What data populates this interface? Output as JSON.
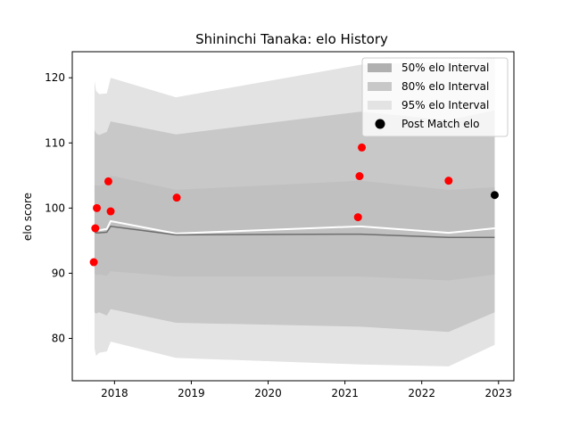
{
  "chart_data": {
    "type": "area",
    "title": "Shininchi Tanaka: elo History",
    "xlabel": "",
    "ylabel": "elo score",
    "xlim": [
      2017.45,
      2023.2
    ],
    "ylim": [
      73.5,
      124
    ],
    "x_ticks": [
      2018,
      2019,
      2020,
      2021,
      2022,
      2023
    ],
    "x_tick_labels": [
      "2018",
      "2019",
      "2020",
      "2021",
      "2022",
      "2023"
    ],
    "y_ticks": [
      80,
      90,
      100,
      110,
      120
    ],
    "y_tick_labels": [
      "80",
      "90",
      "100",
      "110",
      "120"
    ],
    "grid": false,
    "legend_position": "top-right",
    "legend": [
      {
        "label": "50% elo Interval",
        "kind": "patch",
        "color": "#b0b0b0"
      },
      {
        "label": "80% elo Interval",
        "kind": "patch",
        "color": "#c8c8c8"
      },
      {
        "label": "95% elo Interval",
        "kind": "patch",
        "color": "#e3e3e3"
      },
      {
        "label": "Post Match elo",
        "kind": "marker",
        "color": "#000000"
      }
    ],
    "bands": [
      {
        "name": "95% elo Interval",
        "color": "#e3e3e3",
        "x": [
          2017.74,
          2017.76,
          2017.8,
          2017.9,
          2017.95,
          2018.8,
          2021.2,
          2022.35,
          2022.95
        ],
        "upper": [
          119.5,
          118.0,
          117.5,
          117.6,
          120.0,
          117.0,
          122.0,
          122.5,
          123.0
        ],
        "lower": [
          78.5,
          77.3,
          77.8,
          78.0,
          79.5,
          77.0,
          76.0,
          75.7,
          79.0
        ]
      },
      {
        "name": "80% elo Interval",
        "color": "#c8c8c8",
        "x": [
          2017.74,
          2017.76,
          2017.8,
          2017.9,
          2017.95,
          2018.8,
          2021.2,
          2022.35,
          2022.95
        ],
        "upper": [
          112.0,
          111.5,
          111.2,
          111.7,
          113.3,
          111.3,
          114.8,
          113.5,
          115.0
        ],
        "lower": [
          84.0,
          83.8,
          84.0,
          83.5,
          84.5,
          82.4,
          81.8,
          81.0,
          84.0
        ]
      },
      {
        "name": "50% elo Interval",
        "color": "#c0c0c0",
        "x": [
          2017.74,
          2017.76,
          2017.8,
          2017.9,
          2017.95,
          2018.8,
          2021.2,
          2022.35,
          2022.95
        ],
        "upper": [
          103.5,
          103.5,
          103.4,
          103.8,
          105.0,
          102.8,
          104.2,
          102.8,
          103.2
        ],
        "lower": [
          90.0,
          89.7,
          89.8,
          89.6,
          90.3,
          89.5,
          89.5,
          88.9,
          89.8
        ]
      }
    ],
    "lines": [
      {
        "role": "mean",
        "color": "#ffffff",
        "x": [
          2017.74,
          2017.76,
          2017.8,
          2017.9,
          2017.95,
          2018.8,
          2021.2,
          2022.35,
          2022.95
        ],
        "y": [
          96.9,
          96.7,
          96.6,
          96.8,
          98.0,
          96.1,
          97.2,
          96.2,
          96.9
        ]
      },
      {
        "role": "median",
        "color": "#6e6e6e",
        "x": [
          2017.74,
          2017.76,
          2017.8,
          2017.9,
          2017.95,
          2018.8,
          2021.2,
          2022.35,
          2022.95
        ],
        "y": [
          96.4,
          96.2,
          96.2,
          96.3,
          97.2,
          95.9,
          96.0,
          95.5,
          95.5
        ]
      }
    ],
    "points": [
      {
        "x": 2017.73,
        "y": 91.7,
        "color": "#ff0000"
      },
      {
        "x": 2017.75,
        "y": 96.9,
        "color": "#ff0000"
      },
      {
        "x": 2017.77,
        "y": 100.0,
        "color": "#ff0000"
      },
      {
        "x": 2017.92,
        "y": 104.1,
        "color": "#ff0000"
      },
      {
        "x": 2017.95,
        "y": 99.5,
        "color": "#ff0000"
      },
      {
        "x": 2018.81,
        "y": 101.6,
        "color": "#ff0000"
      },
      {
        "x": 2021.17,
        "y": 98.6,
        "color": "#ff0000"
      },
      {
        "x": 2021.19,
        "y": 104.9,
        "color": "#ff0000"
      },
      {
        "x": 2021.22,
        "y": 109.3,
        "color": "#ff0000"
      },
      {
        "x": 2022.35,
        "y": 104.2,
        "color": "#ff0000"
      },
      {
        "x": 2022.95,
        "y": 102.0,
        "color": "#000000"
      }
    ]
  }
}
